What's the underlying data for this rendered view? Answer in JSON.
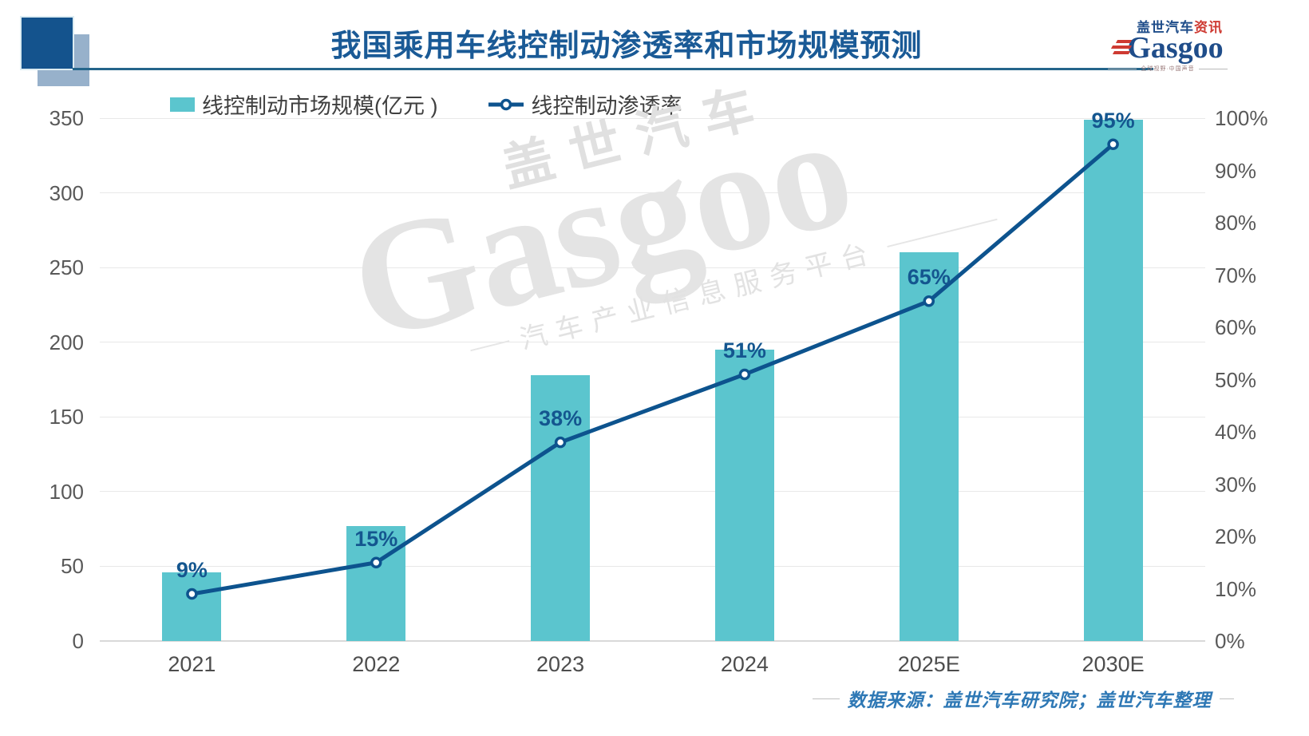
{
  "title": "我国乘用车线控制动渗透率和市场规模预测",
  "logo": {
    "brand_cn": "盖世汽车",
    "brand_cn_suffix": "资讯",
    "brand_en": "Gasgoo",
    "tagline": "全球视野·中国声音"
  },
  "legend": {
    "market_size_label": "线控制动市场规模(亿元 )",
    "penetration_label": "线控制动渗透率"
  },
  "watermark": {
    "line_cn": "盖世汽车",
    "line_en": "Gasgoo",
    "line_sub": "汽车产业信息服务平台"
  },
  "source_note": "数据来源：盖世汽车研究院；盖世汽车整理",
  "colors": {
    "accent_blue": "#1a5a96",
    "line_blue": "#0d538e",
    "bar_teal": "#5bc5ce",
    "logo_red": "#ce3a32",
    "axis_gray": "#595959",
    "watermark_gray": "#e3e3e3"
  },
  "chart_data": {
    "type": "bar+line combo",
    "title": "我国乘用车线控制动渗透率和市场规模预测",
    "categories": [
      "2021",
      "2022",
      "2023",
      "2024",
      "2025E",
      "2030E"
    ],
    "series": [
      {
        "name": "线控制动市场规模(亿元)",
        "type": "bar",
        "axis": "left",
        "values": [
          46,
          77,
          178,
          195,
          260,
          349
        ]
      },
      {
        "name": "线控制动渗透率",
        "type": "line",
        "axis": "right",
        "values": [
          9,
          15,
          38,
          51,
          65,
          95
        ],
        "point_labels": [
          "9%",
          "15%",
          "38%",
          "51%",
          "65%",
          "95%"
        ]
      }
    ],
    "left_axis": {
      "min": 0,
      "max": 350,
      "step": 50,
      "ticks": [
        "0",
        "50",
        "100",
        "150",
        "200",
        "250",
        "300",
        "350"
      ]
    },
    "right_axis": {
      "min": 0,
      "max": 100,
      "step": 10,
      "ticks": [
        "0%",
        "10%",
        "20%",
        "30%",
        "40%",
        "50%",
        "60%",
        "70%",
        "80%",
        "90%",
        "100%"
      ]
    },
    "grid": true,
    "legend_position": "top-left"
  }
}
